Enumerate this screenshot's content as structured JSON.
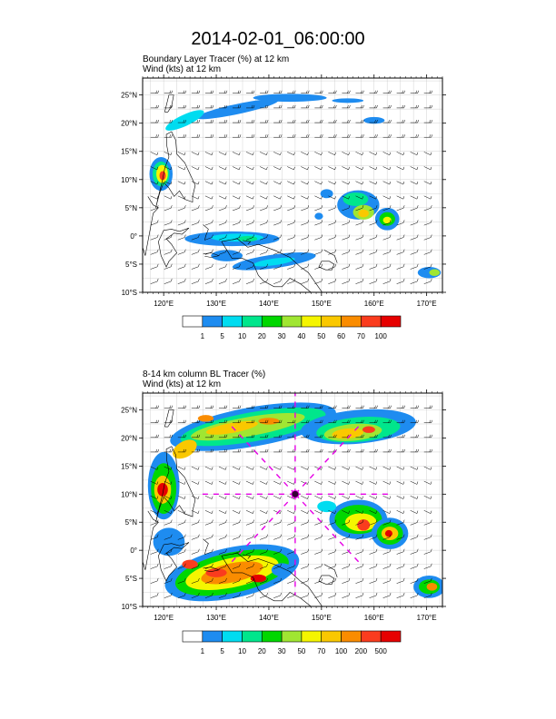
{
  "page": {
    "title": "2014-02-01_06:00:00"
  },
  "colors": {
    "palette": [
      "#ffffff",
      "#1e8cf0",
      "#00dcf0",
      "#00e68c",
      "#00d700",
      "#a0e632",
      "#f5f500",
      "#fac800",
      "#fa8c00",
      "#fa3c1e",
      "#e60000"
    ],
    "map_background": "#ffffff",
    "coastline": "#000000",
    "grid": "#c8c8c8",
    "marker_lines": "#e600e6"
  },
  "chart_data": [
    {
      "type": "heatmap",
      "panel": "top",
      "title": "Boundary Layer Tracer   (%)     at   12 km",
      "subtitle": "Wind    (kts)      at   12 km",
      "xlim": [
        116,
        173
      ],
      "ylim": [
        -10,
        28
      ],
      "x_ticks": [
        120,
        130,
        140,
        150,
        160,
        170
      ],
      "x_tick_labels": [
        "120°E",
        "130°E",
        "140°E",
        "150°E",
        "160°E",
        "170°E"
      ],
      "y_ticks": [
        -10,
        -5,
        0,
        5,
        10,
        15,
        20,
        25
      ],
      "y_tick_labels": [
        "10°S",
        "5°S",
        "0°",
        "5°N",
        "10°N",
        "15°N",
        "20°N",
        "25°N"
      ],
      "grid": true,
      "colorbar_levels": [
        "1",
        "5",
        "10",
        "20",
        "30",
        "40",
        "50",
        "60",
        "70",
        "100"
      ],
      "blobs": [
        {
          "lon": 134,
          "lat": 22.5,
          "rx": 8,
          "ry": 0.9,
          "rot": -12,
          "level": 1
        },
        {
          "lon": 144,
          "lat": 24.5,
          "rx": 7,
          "ry": 0.7,
          "rot": 0,
          "level": 1
        },
        {
          "lon": 124,
          "lat": 20.5,
          "rx": 4,
          "ry": 1.0,
          "rot": -25,
          "level": 2
        },
        {
          "lon": 155,
          "lat": 24.0,
          "rx": 3,
          "ry": 0.4,
          "rot": 0,
          "level": 1
        },
        {
          "lon": 160,
          "lat": 20.5,
          "rx": 2,
          "ry": 0.6,
          "rot": 0,
          "level": 1
        },
        {
          "lon": 119.5,
          "lat": 11.0,
          "rx": 2.2,
          "ry": 3.0,
          "rot": 0,
          "level": 1
        },
        {
          "lon": 119.5,
          "lat": 11.0,
          "rx": 1.6,
          "ry": 2.2,
          "rot": 0,
          "level": 3
        },
        {
          "lon": 119.7,
          "lat": 11.0,
          "rx": 1.1,
          "ry": 1.6,
          "rot": 0,
          "level": 6
        },
        {
          "lon": 119.8,
          "lat": 10.7,
          "rx": 0.6,
          "ry": 0.8,
          "rot": 0,
          "level": 9
        },
        {
          "lon": 157,
          "lat": 5.5,
          "rx": 4,
          "ry": 2.6,
          "rot": 0,
          "level": 1
        },
        {
          "lon": 156.5,
          "lat": 6.5,
          "rx": 2.4,
          "ry": 1.2,
          "rot": 0,
          "level": 3
        },
        {
          "lon": 158,
          "lat": 4.2,
          "rx": 2.0,
          "ry": 1.3,
          "rot": 0,
          "level": 5
        },
        {
          "lon": 158,
          "lat": 4.0,
          "rx": 1.0,
          "ry": 0.7,
          "rot": 0,
          "level": 7
        },
        {
          "lon": 162.5,
          "lat": 3.0,
          "rx": 2.3,
          "ry": 2.0,
          "rot": 0,
          "level": 1
        },
        {
          "lon": 162.5,
          "lat": 3.0,
          "rx": 1.5,
          "ry": 1.2,
          "rot": 0,
          "level": 4
        },
        {
          "lon": 162.5,
          "lat": 2.8,
          "rx": 0.8,
          "ry": 0.6,
          "rot": 0,
          "level": 6
        },
        {
          "lon": 151,
          "lat": 7.5,
          "rx": 1.2,
          "ry": 0.8,
          "rot": 0,
          "level": 1
        },
        {
          "lon": 149.5,
          "lat": 3.5,
          "rx": 0.8,
          "ry": 0.6,
          "rot": 0,
          "level": 1
        },
        {
          "lon": 133,
          "lat": -0.5,
          "rx": 9,
          "ry": 1.3,
          "rot": 0,
          "level": 1
        },
        {
          "lon": 134,
          "lat": -0.3,
          "rx": 5,
          "ry": 0.7,
          "rot": 0,
          "level": 2
        },
        {
          "lon": 136,
          "lat": -0.5,
          "rx": 1.8,
          "ry": 0.5,
          "rot": 0,
          "level": 3
        },
        {
          "lon": 141,
          "lat": -4.5,
          "rx": 8,
          "ry": 1.2,
          "rot": -8,
          "level": 1
        },
        {
          "lon": 141,
          "lat": -4.6,
          "rx": 4,
          "ry": 0.6,
          "rot": -8,
          "level": 2
        },
        {
          "lon": 132,
          "lat": -3.5,
          "rx": 3,
          "ry": 1.0,
          "rot": 0,
          "level": 1
        },
        {
          "lon": 170.5,
          "lat": -6.5,
          "rx": 2.2,
          "ry": 1.0,
          "rot": 0,
          "level": 1
        },
        {
          "lon": 171.5,
          "lat": -6.5,
          "rx": 1.0,
          "ry": 0.6,
          "rot": 0,
          "level": 5
        }
      ],
      "markers": []
    },
    {
      "type": "heatmap",
      "panel": "bottom",
      "title": "8-14 km column BL Tracer    (%)",
      "subtitle": "Wind    (kts)      at   12 km",
      "xlim": [
        116,
        173
      ],
      "ylim": [
        -10,
        28
      ],
      "x_ticks": [
        120,
        130,
        140,
        150,
        160,
        170
      ],
      "x_tick_labels": [
        "120°E",
        "130°E",
        "140°E",
        "150°E",
        "160°E",
        "170°E"
      ],
      "y_ticks": [
        -10,
        -5,
        0,
        5,
        10,
        15,
        20,
        25
      ],
      "y_tick_labels": [
        "10°S",
        "5°S",
        "0°",
        "5°N",
        "10°N",
        "15°N",
        "20°N",
        "25°N"
      ],
      "grid": true,
      "colorbar_levels": [
        "1",
        "5",
        "10",
        "20",
        "30",
        "50",
        "70",
        "100",
        "200",
        "500"
      ],
      "blobs": [
        {
          "lon": 137,
          "lat": 22.0,
          "rx": 16,
          "ry": 3.5,
          "rot": -10,
          "level": 1
        },
        {
          "lon": 137,
          "lat": 22.0,
          "rx": 14,
          "ry": 2.6,
          "rot": -10,
          "level": 3
        },
        {
          "lon": 136,
          "lat": 22.0,
          "rx": 11,
          "ry": 1.7,
          "rot": -10,
          "level": 5
        },
        {
          "lon": 133,
          "lat": 21.8,
          "rx": 5,
          "ry": 0.9,
          "rot": -10,
          "level": 7
        },
        {
          "lon": 124,
          "lat": 18.0,
          "rx": 2.5,
          "ry": 1.4,
          "rot": -30,
          "level": 7
        },
        {
          "lon": 140,
          "lat": 23.0,
          "rx": 2.0,
          "ry": 0.6,
          "rot": 0,
          "level": 8
        },
        {
          "lon": 128,
          "lat": 23.5,
          "rx": 1.5,
          "ry": 0.6,
          "rot": 0,
          "level": 8
        },
        {
          "lon": 157,
          "lat": 22.0,
          "rx": 11,
          "ry": 3.0,
          "rot": -5,
          "level": 1
        },
        {
          "lon": 157,
          "lat": 21.5,
          "rx": 8,
          "ry": 2.2,
          "rot": -5,
          "level": 3
        },
        {
          "lon": 156,
          "lat": 21.0,
          "rx": 5.5,
          "ry": 1.5,
          "rot": -5,
          "level": 5
        },
        {
          "lon": 155,
          "lat": 20.8,
          "rx": 3,
          "ry": 0.9,
          "rot": -5,
          "level": 7
        },
        {
          "lon": 159,
          "lat": 21.5,
          "rx": 1.2,
          "ry": 0.6,
          "rot": 0,
          "level": 9
        },
        {
          "lon": 120,
          "lat": 11.5,
          "rx": 3,
          "ry": 6,
          "rot": 0,
          "level": 1
        },
        {
          "lon": 120,
          "lat": 11.0,
          "rx": 2.4,
          "ry": 4.5,
          "rot": 0,
          "level": 4
        },
        {
          "lon": 119.8,
          "lat": 10.8,
          "rx": 1.6,
          "ry": 2.5,
          "rot": 0,
          "level": 7
        },
        {
          "lon": 119.8,
          "lat": 10.8,
          "rx": 1.0,
          "ry": 1.2,
          "rot": 0,
          "level": 10
        },
        {
          "lon": 157,
          "lat": 5.5,
          "rx": 5.5,
          "ry": 3.5,
          "rot": 0,
          "level": 1
        },
        {
          "lon": 157,
          "lat": 5.5,
          "rx": 4.5,
          "ry": 2.6,
          "rot": 0,
          "level": 4
        },
        {
          "lon": 157.5,
          "lat": 5.0,
          "rx": 3,
          "ry": 1.6,
          "rot": 0,
          "level": 6
        },
        {
          "lon": 158,
          "lat": 4.5,
          "rx": 1.2,
          "ry": 1.0,
          "rot": 0,
          "level": 9
        },
        {
          "lon": 163,
          "lat": 3.0,
          "rx": 3.5,
          "ry": 2.8,
          "rot": 0,
          "level": 1
        },
        {
          "lon": 163,
          "lat": 3.0,
          "rx": 2.5,
          "ry": 2.0,
          "rot": 0,
          "level": 4
        },
        {
          "lon": 163,
          "lat": 3.0,
          "rx": 1.6,
          "ry": 1.2,
          "rot": 0,
          "level": 7
        },
        {
          "lon": 162.8,
          "lat": 3.0,
          "rx": 0.7,
          "ry": 0.6,
          "rot": 0,
          "level": 10
        },
        {
          "lon": 151,
          "lat": 7.8,
          "rx": 1.8,
          "ry": 1.0,
          "rot": 0,
          "level": 2
        },
        {
          "lon": 133,
          "lat": -4.0,
          "rx": 13,
          "ry": 4.5,
          "rot": -12,
          "level": 1
        },
        {
          "lon": 133,
          "lat": -4.0,
          "rx": 11,
          "ry": 3.6,
          "rot": -12,
          "level": 4
        },
        {
          "lon": 133,
          "lat": -4.0,
          "rx": 9,
          "ry": 2.6,
          "rot": -12,
          "level": 6
        },
        {
          "lon": 133,
          "lat": -4.0,
          "rx": 6,
          "ry": 1.7,
          "rot": -12,
          "level": 8
        },
        {
          "lon": 130,
          "lat": -4.0,
          "rx": 2,
          "ry": 0.8,
          "rot": 0,
          "level": 9
        },
        {
          "lon": 138,
          "lat": -5.0,
          "rx": 1.5,
          "ry": 0.7,
          "rot": 0,
          "level": 10
        },
        {
          "lon": 125,
          "lat": -2.5,
          "rx": 1.5,
          "ry": 0.8,
          "rot": 0,
          "level": 9
        },
        {
          "lon": 121,
          "lat": 1.5,
          "rx": 3,
          "ry": 2.5,
          "rot": 0,
          "level": 1
        },
        {
          "lon": 142.5,
          "lat": -3.5,
          "rx": 2.0,
          "ry": 1.2,
          "rot": 0,
          "level": 1
        },
        {
          "lon": 170.5,
          "lat": -6.5,
          "rx": 3,
          "ry": 2.0,
          "rot": 0,
          "level": 1
        },
        {
          "lon": 170.5,
          "lat": -6.5,
          "rx": 2,
          "ry": 1.3,
          "rot": 0,
          "level": 4
        },
        {
          "lon": 171,
          "lat": -6.5,
          "rx": 1.0,
          "ry": 0.7,
          "rot": 0,
          "level": 8
        }
      ],
      "markers": [
        {
          "lon": 145,
          "lat": 10,
          "type": "center",
          "spokes": 8,
          "radius_deg": 18
        }
      ]
    }
  ]
}
